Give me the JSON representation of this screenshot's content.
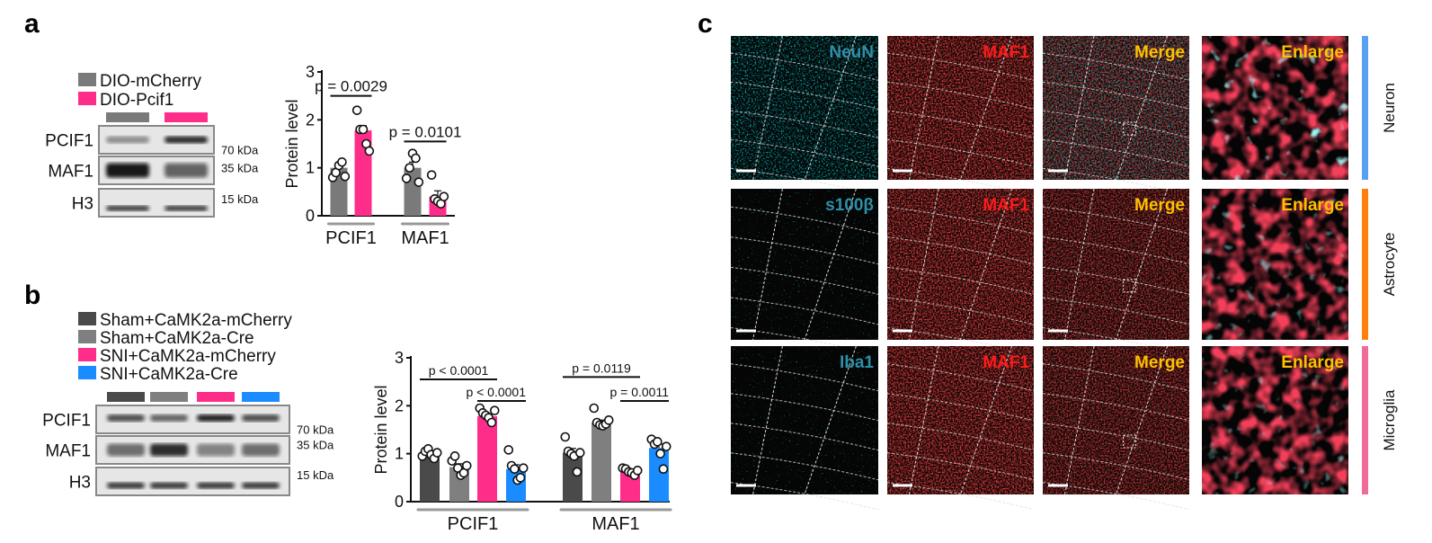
{
  "panels": {
    "a": {
      "label": "a",
      "legend": [
        {
          "name": "DIO-mCherry",
          "color": "#7a7a7a"
        },
        {
          "name": "DIO-Pcif1",
          "color": "#ff2d8a"
        }
      ],
      "blots": [
        {
          "protein": "PCIF1",
          "size": "70 kDa"
        },
        {
          "protein": "MAF1",
          "size": "35 kDa"
        },
        {
          "protein": "H3",
          "size": "15 kDa"
        }
      ]
    },
    "b": {
      "label": "b",
      "legend": [
        {
          "name": "Sham+CaMK2a-mCherry",
          "color": "#4a4a4a"
        },
        {
          "name": "Sham+CaMK2a-Cre",
          "color": "#7f7f7f"
        },
        {
          "name": "SNI+CaMK2a-mCherry",
          "color": "#ff2d8a"
        },
        {
          "name": "SNI+CaMK2a-Cre",
          "color": "#1a8cff"
        }
      ],
      "blots": [
        {
          "protein": "PCIF1",
          "size": "70 kDa"
        },
        {
          "protein": "MAF1",
          "size": "35 kDa"
        },
        {
          "protein": "H3",
          "size": "15 kDa"
        }
      ]
    },
    "c": {
      "label": "c",
      "rows": [
        {
          "marker": "NeuN",
          "cell_type": "Neuron",
          "side_color": "#5aa0f0",
          "marker_color": "#2e8fa8"
        },
        {
          "marker": "s100β",
          "cell_type": "Astrocyte",
          "side_color": "#ff7f0e",
          "marker_color": "#2e8fa8"
        },
        {
          "marker": "Iba1",
          "cell_type": "Microglia",
          "side_color": "#f06a9a",
          "marker_color": "#2e8fa8"
        }
      ],
      "columns": [
        "",
        "MAF1",
        "Merge",
        "Enlarge"
      ],
      "maf1_color": "#ff1a1a",
      "merge_color": "#ffc000"
    }
  },
  "chart_data": [
    {
      "type": "bar",
      "panel": "a",
      "ylabel": "Protein level",
      "ylim": [
        0,
        3
      ],
      "yticks": [
        "0",
        "1",
        "2",
        "3"
      ],
      "categories": [
        "PCIF1",
        "MAF1"
      ],
      "series": [
        {
          "name": "DIO-mCherry",
          "color": "#7a7a7a",
          "values": [
            1.0,
            1.0
          ],
          "sem": [
            0.07,
            0.12
          ],
          "points": [
            [
              0.8,
              0.9,
              1.05,
              1.12,
              0.82
            ],
            [
              0.78,
              1.0,
              1.3,
              1.2,
              0.7
            ]
          ]
        },
        {
          "name": "DIO-Pcif1",
          "color": "#ff2d8a",
          "values": [
            1.78,
            0.4
          ],
          "sem": [
            0.1,
            0.12
          ],
          "points": [
            [
              2.2,
              1.8,
              1.8,
              1.5,
              1.35
            ],
            [
              0.85,
              0.35,
              0.3,
              0.25,
              0.4
            ]
          ]
        }
      ],
      "comparisons": [
        {
          "group": 0,
          "from": 0,
          "to": 1,
          "text": "p = 0.0029",
          "y": 2.5
        },
        {
          "group": 1,
          "from": 0,
          "to": 1,
          "text": "p = 0.0101",
          "y": 1.55
        }
      ]
    },
    {
      "type": "bar",
      "panel": "b",
      "ylabel": "Protein level",
      "ylim": [
        0,
        3
      ],
      "yticks": [
        "0",
        "1",
        "2",
        "3"
      ],
      "categories": [
        "PCIF1",
        "MAF1"
      ],
      "series": [
        {
          "name": "Sham+CaMK2a-mCherry",
          "color": "#4a4a4a",
          "values": [
            1.0,
            1.02
          ],
          "sem": [
            0.03,
            0.09
          ],
          "points": [
            [
              0.95,
              1.05,
              1.1,
              0.98,
              0.9,
              1.02
            ],
            [
              1.35,
              1.05,
              1.0,
              0.95,
              0.62,
              1.02
            ]
          ]
        },
        {
          "name": "Sham+CaMK2a-Cre",
          "color": "#7f7f7f",
          "values": [
            0.72,
            1.65
          ],
          "sem": [
            0.07,
            0.05
          ],
          "points": [
            [
              0.85,
              0.95,
              0.7,
              0.55,
              0.6,
              0.75
            ],
            [
              1.95,
              1.65,
              1.6,
              1.58,
              1.62,
              1.7
            ]
          ]
        },
        {
          "name": "SNI+CaMK2a-mCherry",
          "color": "#ff2d8a",
          "values": [
            1.78,
            0.62
          ],
          "sem": [
            0.05,
            0.03
          ],
          "points": [
            [
              1.95,
              1.85,
              1.8,
              1.75,
              1.65,
              1.9
            ],
            [
              0.7,
              0.68,
              0.62,
              0.6,
              0.55,
              0.65
            ]
          ]
        },
        {
          "name": "SNI+CaMK2a-Cre",
          "color": "#1a8cff",
          "values": [
            0.68,
            1.12
          ],
          "sem": [
            0.09,
            0.08
          ],
          "points": [
            [
              1.08,
              0.75,
              0.68,
              0.45,
              0.5,
              0.7
            ],
            [
              1.3,
              1.2,
              1.25,
              1.0,
              0.68,
              1.15
            ]
          ]
        }
      ],
      "comparisons": [
        {
          "group": 0,
          "from": 0,
          "to": 2,
          "text": "p < 0.0001",
          "y": 2.55
        },
        {
          "group": 0,
          "from": 2,
          "to": 3,
          "text": "p < 0.0001",
          "y": 2.1
        },
        {
          "group": 1,
          "from": 0,
          "to": 2,
          "text": "p = 0.0119",
          "y": 2.6
        },
        {
          "group": 1,
          "from": 2,
          "to": 3,
          "text": "p = 0.0011",
          "y": 2.1
        }
      ]
    }
  ]
}
